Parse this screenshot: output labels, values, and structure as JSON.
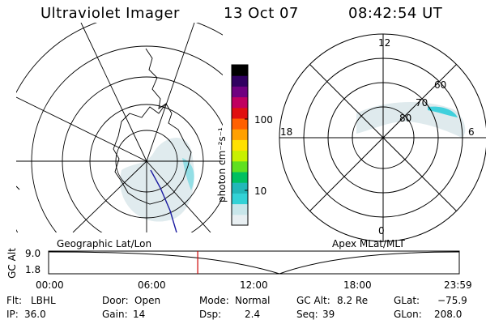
{
  "header": {
    "instrument": "Ultraviolet Imager",
    "date": "13 Oct 07",
    "time": "08:42:54 UT"
  },
  "left_panel": {
    "label": "Geographic Lat/Lon"
  },
  "right_panel": {
    "label": "Apex MLat/MLT",
    "clock_labels": {
      "top": "12",
      "left": "18",
      "right": "6",
      "bottom": "0"
    },
    "lat_labels": [
      "80",
      "70",
      "60"
    ]
  },
  "colorbar": {
    "unit_label": "photon cm⁻²s⁻¹",
    "ticks": [
      {
        "label": "100",
        "value": 100
      },
      {
        "label": "10",
        "value": 10
      }
    ],
    "colors": [
      "#e8eff2",
      "#c8e6ea",
      "#33d2d6",
      "#22b8b8",
      "#00c060",
      "#60e020",
      "#c8f000",
      "#ffe000",
      "#ffa000",
      "#ff6000",
      "#e01010",
      "#c00060",
      "#700080",
      "#300060",
      "#000000"
    ]
  },
  "altitude_track": {
    "axis_label": "GC Alt",
    "ymax_label": "9.0",
    "ymin_label": "1.8",
    "time_ticks": [
      "00:00",
      "06:00",
      "12:00",
      "18:00",
      "23:59"
    ],
    "current_time_fraction": 0.3631,
    "marker_color": "#cc0000"
  },
  "status": {
    "row1": [
      {
        "key": "Flt:",
        "value": "LBHL"
      },
      {
        "key": "Door:",
        "value": "Open"
      },
      {
        "key": "Mode:",
        "value": "Normal"
      },
      {
        "key": "GC Alt:",
        "value": "8.2 Re"
      },
      {
        "key": "GLat:",
        "value": "−75.9"
      }
    ],
    "row2": [
      {
        "key": "IP:",
        "value": "36.0"
      },
      {
        "key": "Gain:",
        "value": "14"
      },
      {
        "key": "Dsp:",
        "value": "2.4"
      },
      {
        "key": "Seq:",
        "value": "39"
      },
      {
        "key": "GLon:",
        "value": "208.0"
      }
    ]
  },
  "colors": {
    "aurora_faint": "#d9e9ec",
    "aurora_cyan": "#40d0dc",
    "track_line": "#1a1aa0"
  }
}
